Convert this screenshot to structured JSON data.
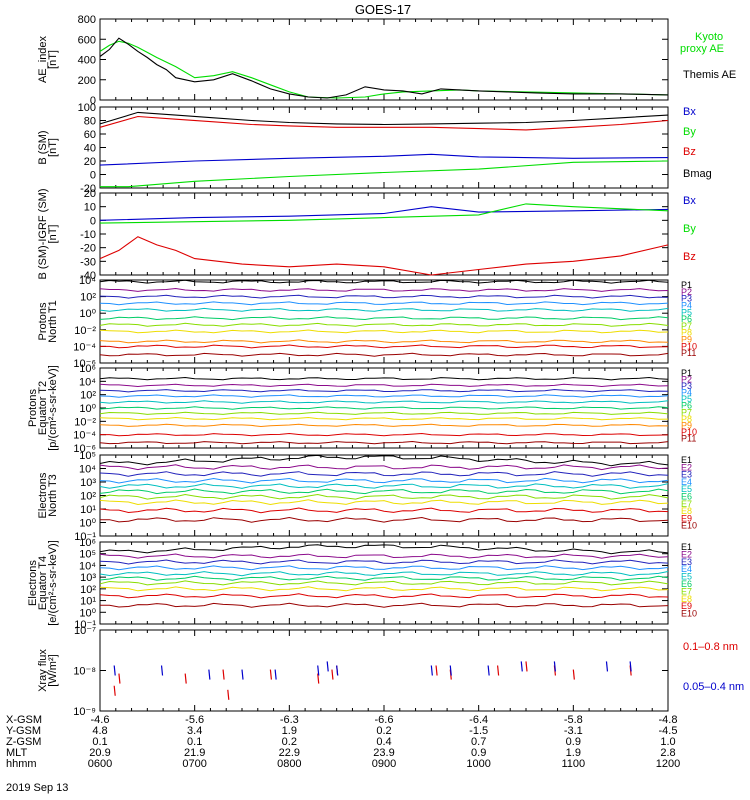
{
  "title": "GOES-17",
  "date_label": "2019 Sep 13",
  "colors": {
    "black": "#000000",
    "green": "#00dd00",
    "red": "#dd0000",
    "blue": "#0000cc"
  },
  "footer": {
    "row_labels": [
      "X-GSM",
      "Y-GSM",
      "Z-GSM",
      "MLT",
      "hhmm"
    ],
    "columns": [
      [
        "-4.6",
        "4.8",
        "0.1",
        "20.9",
        "0600"
      ],
      [
        "-5.6",
        "3.4",
        "0.1",
        "21.9",
        "0700"
      ],
      [
        "-6.3",
        "1.9",
        "0.2",
        "22.9",
        "0800"
      ],
      [
        "-6.6",
        "0.2",
        "0.4",
        "23.9",
        "0900"
      ],
      [
        "-6.4",
        "-1.5",
        "0.7",
        "0.9",
        "1000"
      ],
      [
        "-5.8",
        "-3.1",
        "0.9",
        "1.9",
        "1100"
      ],
      [
        "-4.8",
        "-4.5",
        "1.0",
        "2.8",
        "1200"
      ]
    ]
  },
  "chart_data": [
    {
      "type": "line",
      "ylabel": [
        "AE_index",
        "[nT]"
      ],
      "ylim": [
        0,
        800
      ],
      "ytick_labels": [
        "800",
        "600",
        "400",
        "200",
        "0"
      ],
      "ytick_values": [
        800,
        600,
        400,
        200,
        0
      ],
      "x_hours": [
        6,
        12
      ],
      "series": [
        {
          "name": "Kyoto\nproxy AE",
          "color": "#00dd00",
          "x": [
            6.0,
            6.1,
            6.2,
            6.3,
            6.4,
            6.5,
            6.6,
            6.8,
            7.0,
            7.2,
            7.4,
            7.6,
            7.8,
            8.0,
            8.2,
            8.5,
            8.8,
            9.0,
            9.2,
            9.5,
            9.8,
            10.0,
            10.5,
            11.0,
            11.5,
            12.0
          ],
          "y": [
            480,
            540,
            580,
            560,
            520,
            470,
            420,
            330,
            220,
            240,
            280,
            220,
            150,
            80,
            30,
            20,
            30,
            60,
            80,
            90,
            100,
            90,
            80,
            70,
            60,
            50
          ]
        },
        {
          "name": "Themis AE",
          "color": "#000000",
          "x": [
            6.0,
            6.1,
            6.2,
            6.3,
            6.4,
            6.5,
            6.6,
            6.7,
            6.8,
            7.0,
            7.2,
            7.4,
            7.6,
            7.8,
            8.0,
            8.2,
            8.4,
            8.6,
            8.8,
            9.0,
            9.2,
            9.4,
            9.6,
            9.8,
            10.0,
            10.3,
            10.6,
            11.0,
            11.5,
            12.0
          ],
          "y": [
            430,
            500,
            610,
            550,
            480,
            420,
            350,
            300,
            220,
            180,
            200,
            260,
            190,
            110,
            60,
            30,
            20,
            50,
            130,
            100,
            90,
            60,
            110,
            100,
            90,
            80,
            70,
            60,
            60,
            50
          ]
        }
      ]
    },
    {
      "type": "line",
      "ylabel": [
        "B (SM)",
        "[nT]"
      ],
      "ylim": [
        -20,
        100
      ],
      "ytick_labels": [
        "100",
        "80",
        "60",
        "40",
        "20",
        "0",
        "-20"
      ],
      "ytick_values": [
        100,
        80,
        60,
        40,
        20,
        0,
        -20
      ],
      "x_hours": [
        6,
        12
      ],
      "series": [
        {
          "name": "Bx",
          "color": "#0000cc",
          "x": [
            6,
            7,
            8,
            9,
            9.5,
            10,
            11,
            12
          ],
          "y": [
            14,
            20,
            24,
            27,
            30,
            26,
            24,
            25
          ]
        },
        {
          "name": "By",
          "color": "#00dd00",
          "x": [
            6,
            6.3,
            7,
            8,
            9,
            10,
            11,
            12
          ],
          "y": [
            -18,
            -18,
            -10,
            -3,
            3,
            8,
            18,
            20
          ]
        },
        {
          "name": "Bz",
          "color": "#dd0000",
          "x": [
            6,
            6.4,
            6.8,
            7.2,
            7.6,
            8,
            8.5,
            9,
            9.5,
            10,
            10.5,
            11,
            11.5,
            12
          ],
          "y": [
            70,
            86,
            82,
            78,
            74,
            72,
            70,
            70,
            70,
            68,
            66,
            70,
            74,
            80
          ]
        },
        {
          "name": "Bmag",
          "color": "#000000",
          "x": [
            6,
            6.4,
            6.8,
            7.2,
            7.6,
            8,
            8.5,
            9,
            9.5,
            10,
            10.5,
            11,
            11.5,
            12
          ],
          "y": [
            75,
            92,
            88,
            84,
            80,
            77,
            75,
            74,
            75,
            76,
            77,
            80,
            84,
            88
          ]
        }
      ]
    },
    {
      "type": "line",
      "ylabel": [
        "B (SM)-IGRF (SM)",
        "[nT]"
      ],
      "ylim": [
        -40,
        20
      ],
      "ytick_labels": [
        "20",
        "10",
        "0",
        "-10",
        "-20",
        "-30",
        "-40"
      ],
      "ytick_values": [
        20,
        10,
        0,
        -10,
        -20,
        -30,
        -40
      ],
      "x_hours": [
        6,
        12
      ],
      "series": [
        {
          "name": "Bx",
          "color": "#0000cc",
          "x": [
            6,
            7,
            8,
            9,
            9.5,
            10,
            11,
            12
          ],
          "y": [
            0,
            2,
            3,
            5,
            10,
            6,
            7,
            8
          ]
        },
        {
          "name": "By",
          "color": "#00dd00",
          "x": [
            6,
            7,
            8,
            9,
            10,
            10.5,
            11,
            12
          ],
          "y": [
            -2,
            -1,
            0,
            2,
            4,
            12,
            10,
            7
          ]
        },
        {
          "name": "Bz",
          "color": "#dd0000",
          "x": [
            6,
            6.2,
            6.4,
            6.6,
            6.8,
            7,
            7.5,
            8,
            8.5,
            9,
            9.5,
            10,
            10.5,
            11,
            11.5,
            12
          ],
          "y": [
            -28,
            -22,
            -12,
            -18,
            -22,
            -28,
            -32,
            -34,
            -32,
            -34,
            -40,
            -36,
            -32,
            -30,
            -26,
            -18
          ]
        }
      ]
    },
    {
      "type": "line",
      "scale": "log",
      "ylabel": [
        "Protons",
        "North T1"
      ],
      "ylim": [
        -6,
        4
      ],
      "ytick_labels": [
        "10⁴",
        "10²",
        "10⁰",
        "10⁻²",
        "10⁻⁴",
        "10⁻⁶"
      ],
      "ytick_values": [
        4,
        2,
        0,
        -2,
        -4,
        -6
      ],
      "x_hours": [
        6,
        12
      ],
      "series": [
        {
          "name": "P1",
          "color": "#000000",
          "log_level": 3.8
        },
        {
          "name": "P2",
          "color": "#8b0a8b",
          "log_level": 2.8
        },
        {
          "name": "P3",
          "color": "#2222bb",
          "log_level": 2.0
        },
        {
          "name": "P4",
          "color": "#1e90ff",
          "log_level": 1.2
        },
        {
          "name": "P5",
          "color": "#00bfbf",
          "log_level": 0.4
        },
        {
          "name": "P6",
          "color": "#00cc66",
          "log_level": -0.6
        },
        {
          "name": "P7",
          "color": "#88dd00",
          "log_level": -1.4
        },
        {
          "name": "P8",
          "color": "#eedd00",
          "log_level": -2.2
        },
        {
          "name": "P9",
          "color": "#ff8800",
          "log_level": -3.4
        },
        {
          "name": "P10",
          "color": "#dd0000",
          "log_level": -4.0
        },
        {
          "name": "P11",
          "color": "#990000",
          "log_level": -5.0
        }
      ]
    },
    {
      "type": "line",
      "scale": "log",
      "ylabel": [
        "Protons",
        "Equator T2",
        "[p/(cm²-s-sr-keV)]"
      ],
      "ylim": [
        -6,
        6
      ],
      "ytick_labels": [
        "10⁶",
        "10⁴",
        "10²",
        "10⁰",
        "10⁻²",
        "10⁻⁴",
        "10⁻⁶"
      ],
      "ytick_values": [
        6,
        4,
        2,
        0,
        -2,
        -4,
        -6
      ],
      "x_hours": [
        6,
        12
      ],
      "series": [
        {
          "name": "P1",
          "color": "#000000",
          "log_level": 4.4
        },
        {
          "name": "P2",
          "color": "#8b0a8b",
          "log_level": 3.4
        },
        {
          "name": "P3",
          "color": "#2222bb",
          "log_level": 2.6
        },
        {
          "name": "P4",
          "color": "#1e90ff",
          "log_level": 1.8
        },
        {
          "name": "P5",
          "color": "#00bfbf",
          "log_level": 0.9
        },
        {
          "name": "P6",
          "color": "#00cc66",
          "log_level": 0.0
        },
        {
          "name": "P7",
          "color": "#88dd00",
          "log_level": -0.8
        },
        {
          "name": "P8",
          "color": "#eedd00",
          "log_level": -1.6
        },
        {
          "name": "P9",
          "color": "#ff8800",
          "log_level": -2.6
        },
        {
          "name": "P10",
          "color": "#dd0000",
          "log_level": -4.0
        },
        {
          "name": "P11",
          "color": "#990000",
          "log_level": -5.2
        }
      ]
    },
    {
      "type": "line",
      "scale": "log",
      "ylabel": [
        "Electrons",
        "North T3"
      ],
      "ylim": [
        -1,
        5
      ],
      "ytick_labels": [
        "10⁵",
        "10⁴",
        "10³",
        "10²",
        "10¹",
        "10⁰",
        "10⁻¹"
      ],
      "ytick_values": [
        5,
        4,
        3,
        2,
        1,
        0,
        -1
      ],
      "x_hours": [
        6,
        12
      ],
      "series": [
        {
          "name": "E1",
          "color": "#000000",
          "log_level": 4.6
        },
        {
          "name": "E2",
          "color": "#8b0a8b",
          "log_level": 4.1
        },
        {
          "name": "E3",
          "color": "#2222bb",
          "log_level": 3.6
        },
        {
          "name": "E4",
          "color": "#1e90ff",
          "log_level": 3.1
        },
        {
          "name": "E5",
          "color": "#00bfbf",
          "log_level": 2.7
        },
        {
          "name": "E6",
          "color": "#00cc66",
          "log_level": 2.3
        },
        {
          "name": "E7",
          "color": "#88dd00",
          "log_level": 1.9
        },
        {
          "name": "E8",
          "color": "#eedd00",
          "log_level": 1.5
        },
        {
          "name": "E9",
          "color": "#dd0000",
          "log_level": 0.9
        },
        {
          "name": "E10",
          "color": "#990000",
          "log_level": 0.2
        }
      ]
    },
    {
      "type": "line",
      "scale": "log",
      "ylabel": [
        "Electrons",
        "Equator T4",
        "[e/(cm²-s-sr-keV)]"
      ],
      "ylim": [
        -1,
        6
      ],
      "ytick_labels": [
        "10⁶",
        "10⁵",
        "10⁴",
        "10³",
        "10²",
        "10¹",
        "10⁰",
        "10⁻¹"
      ],
      "ytick_values": [
        6,
        5,
        4,
        3,
        2,
        1,
        0,
        -1
      ],
      "x_hours": [
        6,
        12
      ],
      "series": [
        {
          "name": "E1",
          "color": "#000000",
          "log_level": 5.4
        },
        {
          "name": "E2",
          "color": "#8b0a8b",
          "log_level": 4.8
        },
        {
          "name": "E3",
          "color": "#2222bb",
          "log_level": 4.3
        },
        {
          "name": "E4",
          "color": "#1e90ff",
          "log_level": 3.8
        },
        {
          "name": "E5",
          "color": "#00bfbf",
          "log_level": 3.3
        },
        {
          "name": "E6",
          "color": "#00cc66",
          "log_level": 2.9
        },
        {
          "name": "E7",
          "color": "#88dd00",
          "log_level": 2.5
        },
        {
          "name": "E8",
          "color": "#eedd00",
          "log_level": 2.0
        },
        {
          "name": "E9",
          "color": "#dd0000",
          "log_level": 1.4
        },
        {
          "name": "E10",
          "color": "#990000",
          "log_level": 0.6
        }
      ]
    },
    {
      "type": "scatter",
      "scale": "log",
      "ylabel": [
        "Xray flux",
        "[W/m²]"
      ],
      "ylim": [
        -9,
        -7
      ],
      "ytick_labels": [
        "10⁻⁷",
        "10⁻⁸",
        "10⁻⁹"
      ],
      "ytick_values": [
        -7,
        -8,
        -9
      ],
      "x_hours": [
        6,
        12
      ],
      "series": [
        {
          "name": "0.1–0.8 nm",
          "color": "#dd0000",
          "x": [
            6.15,
            6.2,
            6.9,
            7.3,
            7.35,
            7.8,
            8.3,
            8.45,
            8.5,
            9.55,
            9.7,
            10.2,
            10.5,
            10.8,
            11.0,
            11.6
          ],
          "y": [
            -8.5,
            -8.2,
            -8.2,
            -8.1,
            -8.6,
            -8.1,
            -8.2,
            -8.1,
            -8.0,
            -8.0,
            -8.1,
            -8.0,
            -7.9,
            -8.0,
            -8.1,
            -8.0
          ]
        },
        {
          "name": "0.05–0.4 nm",
          "color": "#0000cc",
          "x": [
            6.15,
            6.65,
            7.15,
            7.5,
            7.85,
            8.3,
            8.4,
            8.5,
            9.5,
            9.7,
            10.1,
            10.45,
            10.8,
            11.35,
            11.6
          ],
          "y": [
            -8.0,
            -8.0,
            -8.1,
            -8.1,
            -8.1,
            -8.0,
            -7.9,
            -8.0,
            -8.0,
            -8.0,
            -8.0,
            -7.9,
            -7.9,
            -7.9,
            -7.9
          ]
        }
      ]
    }
  ]
}
